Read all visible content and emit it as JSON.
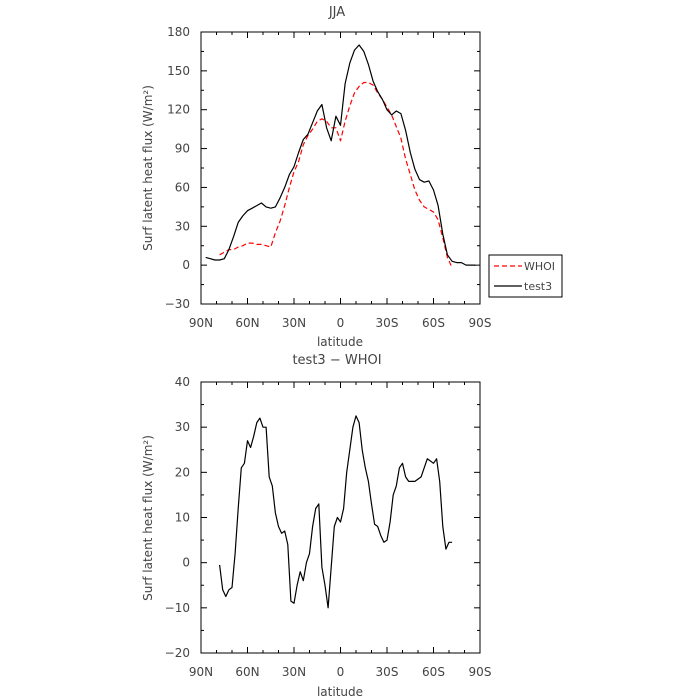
{
  "chart_data": [
    {
      "type": "line",
      "title": "JJA",
      "xlabel": "latitude",
      "ylabel": "Surf latent heat flux (W/m²)",
      "x_unit": "degrees latitude (positive = N, negative = S)",
      "xlim": [
        90,
        -90
      ],
      "ylim": [
        -30,
        180
      ],
      "xticks": [
        90,
        60,
        30,
        0,
        -30,
        -60,
        -90
      ],
      "xtick_labels": [
        "90N",
        "60N",
        "30N",
        "0",
        "30S",
        "60S",
        "90S"
      ],
      "yticks": [
        -30,
        0,
        30,
        60,
        90,
        120,
        150,
        180
      ],
      "ytick_labels": [
        "−30",
        "0",
        "30",
        "60",
        "90",
        "120",
        "150",
        "180"
      ],
      "grid": false,
      "legend": {
        "placement": "outside-right"
      },
      "series": [
        {
          "name": "WHOI",
          "color": "#ff0000",
          "style": "dashed",
          "x": [
            78,
            75,
            72,
            69,
            66,
            63,
            60,
            57,
            54,
            51,
            48,
            45,
            42,
            39,
            36,
            33,
            30,
            27,
            24,
            21,
            18,
            15,
            12,
            9,
            6,
            3,
            0,
            -3,
            -6,
            -9,
            -12,
            -15,
            -18,
            -21,
            -24,
            -27,
            -30,
            -33,
            -36,
            -39,
            -42,
            -45,
            -48,
            -51,
            -54,
            -57,
            -60,
            -63,
            -66,
            -69,
            -72
          ],
          "y": [
            8,
            10,
            12,
            12,
            14,
            15,
            17,
            17,
            16,
            16,
            15,
            14,
            25,
            34,
            46,
            60,
            72,
            80,
            93,
            100,
            105,
            111,
            113,
            111,
            106,
            106,
            96,
            111,
            123,
            133,
            138,
            141,
            141,
            139,
            133,
            128,
            122,
            116,
            107,
            98,
            82,
            70,
            58,
            50,
            45,
            43,
            41,
            35,
            21,
            6,
            -2
          ]
        },
        {
          "name": "test3",
          "color": "#000000",
          "style": "solid",
          "x": [
            87,
            84,
            81,
            78,
            75,
            72,
            69,
            66,
            63,
            60,
            57,
            54,
            51,
            48,
            45,
            42,
            39,
            36,
            33,
            30,
            27,
            24,
            21,
            18,
            15,
            12,
            9,
            6,
            3,
            0,
            -3,
            -6,
            -9,
            -12,
            -15,
            -18,
            -21,
            -24,
            -27,
            -30,
            -33,
            -36,
            -39,
            -42,
            -45,
            -48,
            -51,
            -54,
            -57,
            -60,
            -63,
            -66,
            -69,
            -72,
            -75,
            -78,
            -81,
            -84,
            -87
          ],
          "y": [
            6,
            5,
            4,
            4,
            5,
            12,
            22,
            33,
            38,
            42,
            44,
            46,
            48,
            45,
            44,
            45,
            52,
            60,
            70,
            76,
            87,
            97,
            101,
            110,
            119,
            124,
            106,
            96,
            115,
            108,
            140,
            156,
            166,
            170,
            165,
            155,
            142,
            134,
            128,
            120,
            116,
            119,
            117,
            104,
            87,
            74,
            66,
            64,
            65,
            58,
            46,
            24,
            8,
            3,
            2,
            2,
            0,
            0,
            0
          ]
        }
      ]
    },
    {
      "type": "line",
      "title": "test3 − WHOI",
      "xlabel": "latitude",
      "ylabel": "Surf latent heat flux (W/m²)",
      "x_unit": "degrees latitude (positive = N, negative = S)",
      "xlim": [
        90,
        -90
      ],
      "ylim": [
        -20,
        40
      ],
      "xticks": [
        90,
        60,
        30,
        0,
        -30,
        -60,
        -90
      ],
      "xtick_labels": [
        "90N",
        "60N",
        "30N",
        "0",
        "30S",
        "60S",
        "90S"
      ],
      "yticks": [
        -20,
        -10,
        0,
        10,
        20,
        30,
        40
      ],
      "ytick_labels": [
        "−20",
        "−10",
        "0",
        "10",
        "20",
        "30",
        "40"
      ],
      "grid": false,
      "series": [
        {
          "color": "#000000",
          "style": "solid",
          "x": [
            78,
            76,
            74,
            72,
            70,
            68,
            66,
            64,
            62,
            60,
            58,
            56,
            54,
            52,
            50,
            48,
            46,
            44,
            42,
            40,
            38,
            36,
            34,
            32,
            30,
            28,
            26,
            24,
            22,
            20,
            18,
            16,
            14,
            12,
            10,
            8,
            6,
            4,
            2,
            0,
            -2,
            -4,
            -6,
            -8,
            -10,
            -12,
            -14,
            -16,
            -18,
            -20,
            -22,
            -24,
            -26,
            -28,
            -30,
            -32,
            -34,
            -36,
            -38,
            -40,
            -42,
            -44,
            -46,
            -48,
            -50,
            -52,
            -54,
            -56,
            -58,
            -60,
            -62,
            -64,
            -66,
            -68,
            -70,
            -72
          ],
          "y": [
            -0.5,
            -6,
            -7.5,
            -6,
            -5.5,
            2,
            12,
            21,
            22,
            27,
            25.5,
            28,
            31,
            32,
            30,
            30,
            19,
            17,
            11,
            8,
            6.5,
            7,
            4,
            -8.5,
            -9,
            -5,
            -2,
            -4,
            0,
            2,
            8,
            12,
            13,
            -1,
            -5,
            -10,
            -1,
            8,
            10,
            9,
            12,
            20,
            25,
            30,
            32.5,
            31,
            25,
            21,
            18,
            13,
            8.5,
            8,
            6,
            4.5,
            5,
            9,
            15,
            17,
            21,
            22,
            19,
            18,
            18,
            18,
            18.5,
            19,
            21,
            23,
            22.5,
            22,
            23,
            18,
            8,
            3,
            4.5,
            4.5
          ]
        }
      ]
    }
  ]
}
